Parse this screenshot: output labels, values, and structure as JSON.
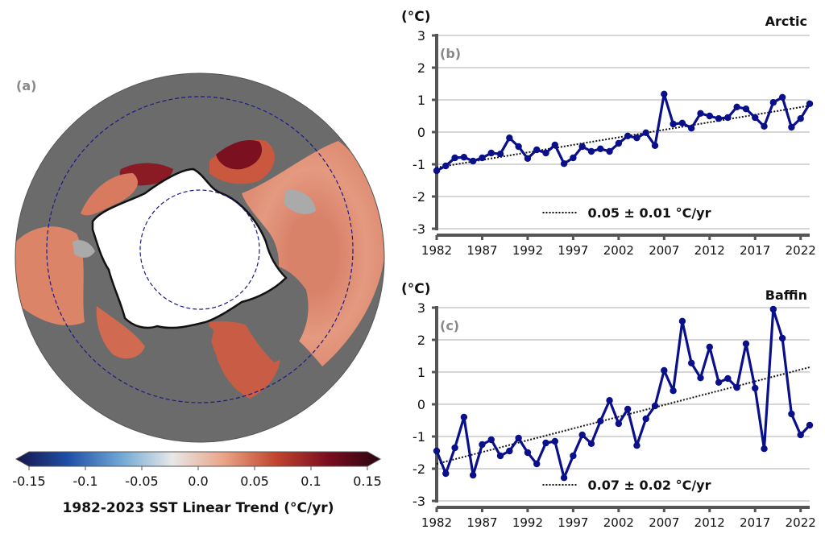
{
  "colors": {
    "line": "#0a0f8a",
    "trend": "#111111",
    "axis": "#555555",
    "grid": "#bdbdbd",
    "land": "#6b6b6b",
    "ice": "#ffffff",
    "panel_label": "#888888"
  },
  "map": {
    "panel_label": "(a)",
    "colorbar": {
      "label": "1982-2023 SST Linear Trend (°C/yr)",
      "ticks": [
        "-0.15",
        "-0.1",
        "-0.05",
        "0.0",
        "0.05",
        "0.1",
        "0.15"
      ],
      "stops": [
        "#15154a",
        "#1f4fa8",
        "#6fa6d4",
        "#e8e8e8",
        "#e9a486",
        "#c0442e",
        "#7a0d20",
        "#2a0510"
      ]
    }
  },
  "chart_data": [
    {
      "type": "line",
      "panel_label": "(b)",
      "title": "Arctic",
      "ylabel": "(°C)",
      "ylim": [
        -3,
        3
      ],
      "yticks": [
        "3",
        "2",
        "1",
        "0",
        "-1",
        "-2",
        "-3"
      ],
      "xlim": [
        1982,
        2023
      ],
      "xticks": [
        "1982",
        "1987",
        "1992",
        "1997",
        "2002",
        "2007",
        "2012",
        "2017",
        "2022"
      ],
      "grid": true,
      "legend_position": "bottom-center",
      "trend": {
        "label": "0.05 ± 0.01 °C/yr",
        "start": -1.1,
        "end": 0.82
      },
      "series": [
        {
          "x": [
            1982,
            1983,
            1984,
            1985,
            1986,
            1987,
            1988,
            1989,
            1990,
            1991,
            1992,
            1993,
            1994,
            1995,
            1996,
            1997,
            1998,
            1999,
            2000,
            2001,
            2002,
            2003,
            2004,
            2005,
            2006,
            2007,
            2008,
            2009,
            2010,
            2011,
            2012,
            2013,
            2014,
            2015,
            2016,
            2017,
            2018,
            2019,
            2020,
            2021,
            2022,
            2023
          ],
          "values": [
            -1.2,
            -1.05,
            -0.8,
            -0.78,
            -0.9,
            -0.8,
            -0.65,
            -0.68,
            -0.18,
            -0.45,
            -0.82,
            -0.55,
            -0.65,
            -0.4,
            -0.98,
            -0.8,
            -0.45,
            -0.6,
            -0.52,
            -0.6,
            -0.35,
            -0.12,
            -0.18,
            -0.02,
            -0.42,
            1.18,
            0.25,
            0.28,
            0.12,
            0.58,
            0.5,
            0.42,
            0.45,
            0.78,
            0.72,
            0.45,
            0.18,
            0.92,
            1.08,
            0.15,
            0.42,
            0.88
          ]
        }
      ]
    },
    {
      "type": "line",
      "panel_label": "(c)",
      "title": "Baffin",
      "ylabel": "(°C)",
      "ylim": [
        -3,
        3
      ],
      "yticks": [
        "3",
        "2",
        "1",
        "0",
        "-1",
        "-2",
        "-3"
      ],
      "xlim": [
        1982,
        2023
      ],
      "xticks": [
        "1982",
        "1987",
        "1992",
        "1997",
        "2002",
        "2007",
        "2012",
        "2017",
        "2022"
      ],
      "grid": true,
      "legend_position": "bottom-center",
      "trend": {
        "label": "0.07 ± 0.02 °C/yr",
        "start": -1.85,
        "end": 1.15
      },
      "series": [
        {
          "x": [
            1982,
            1983,
            1984,
            1985,
            1986,
            1987,
            1988,
            1989,
            1990,
            1991,
            1992,
            1993,
            1994,
            1995,
            1996,
            1997,
            1998,
            1999,
            2000,
            2001,
            2002,
            2003,
            2004,
            2005,
            2006,
            2007,
            2008,
            2009,
            2010,
            2011,
            2012,
            2013,
            2014,
            2015,
            2016,
            2017,
            2018,
            2019,
            2020,
            2021,
            2022,
            2023
          ],
          "values": [
            -1.45,
            -2.15,
            -1.35,
            -0.4,
            -2.2,
            -1.25,
            -1.1,
            -1.6,
            -1.45,
            -1.05,
            -1.5,
            -1.85,
            -1.2,
            -1.15,
            -2.28,
            -1.6,
            -0.95,
            -1.22,
            -0.52,
            0.12,
            -0.6,
            -0.15,
            -1.28,
            -0.45,
            -0.05,
            1.05,
            0.42,
            2.58,
            1.28,
            0.82,
            1.78,
            0.68,
            0.8,
            0.52,
            1.88,
            0.5,
            -1.38,
            2.95,
            2.05,
            -0.3,
            -0.95,
            -0.65
          ]
        }
      ]
    }
  ]
}
